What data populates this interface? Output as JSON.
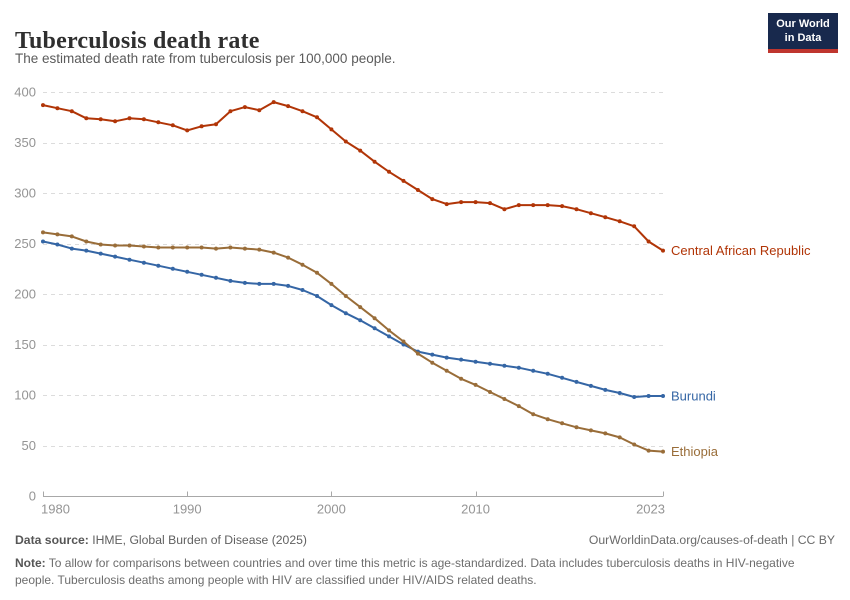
{
  "header": {
    "title": "Tuberculosis death rate",
    "subtitle": "The estimated death rate from tuberculosis per 100,000 people.",
    "logo": {
      "line1": "Our World",
      "line2": "in Data"
    }
  },
  "footer": {
    "source_label": "Data source:",
    "source_text": " IHME, Global Burden of Disease (2025)",
    "license": "OurWorldinData.org/causes-of-death | CC BY",
    "note_label": "Note:",
    "note_text": " To allow for comparisons between countries and over time this metric is age-standardized. Data includes tuberculosis deaths in HIV-negative people. Tuberculosis deaths among people with HIV are classified under HIV/AIDS related deaths."
  },
  "chart_data": {
    "type": "line",
    "title": "Tuberculosis death rate",
    "xlabel": "",
    "ylabel": "",
    "ylim": [
      0,
      400
    ],
    "y_ticks": [
      0,
      50,
      100,
      150,
      200,
      250,
      300,
      350,
      400
    ],
    "x_ticks": [
      1980,
      1990,
      2000,
      2010,
      2023
    ],
    "x_tick_labels": [
      "1980",
      "1990",
      "2000",
      "2010",
      "2023"
    ],
    "x_range": [
      1980,
      2023
    ],
    "grid": "horizontal-dashed",
    "legend_position": "line-end-labels",
    "x": [
      1980,
      1981,
      1982,
      1983,
      1984,
      1985,
      1986,
      1987,
      1988,
      1989,
      1990,
      1991,
      1992,
      1993,
      1994,
      1995,
      1996,
      1997,
      1998,
      1999,
      2000,
      2001,
      2002,
      2003,
      2004,
      2005,
      2006,
      2007,
      2008,
      2009,
      2010,
      2011,
      2012,
      2013,
      2014,
      2015,
      2016,
      2017,
      2018,
      2019,
      2020,
      2021,
      2022,
      2023
    ],
    "series": [
      {
        "name": "Central African Republic",
        "color": "#b13507",
        "values": [
          387,
          384,
          381,
          374,
          373,
          371,
          374,
          373,
          370,
          367,
          362,
          366,
          368,
          381,
          385,
          382,
          390,
          386,
          381,
          375,
          363,
          351,
          342,
          331,
          321,
          312,
          303,
          294,
          289,
          291,
          291,
          290,
          284,
          288,
          288,
          288,
          287,
          284,
          280,
          276,
          272,
          267,
          252,
          243
        ]
      },
      {
        "name": "Burundi",
        "color": "#3566a5",
        "values": [
          252,
          249,
          245,
          243,
          240,
          237,
          234,
          231,
          228,
          225,
          222,
          219,
          216,
          213,
          211,
          210,
          210,
          208,
          204,
          198,
          189,
          181,
          174,
          166,
          158,
          150,
          143,
          140,
          137,
          135,
          133,
          131,
          129,
          127,
          124,
          121,
          117,
          113,
          109,
          105,
          102,
          98,
          99,
          99
        ]
      },
      {
        "name": "Ethiopia",
        "color": "#996d39",
        "values": [
          261,
          259,
          257,
          252,
          249,
          248,
          248,
          247,
          246,
          246,
          246,
          246,
          245,
          246,
          245,
          244,
          241,
          236,
          229,
          221,
          210,
          198,
          187,
          176,
          164,
          153,
          141,
          132,
          124,
          116,
          110,
          103,
          96,
          89,
          81,
          76,
          72,
          68,
          65,
          62,
          58,
          51,
          45,
          44
        ]
      }
    ]
  }
}
